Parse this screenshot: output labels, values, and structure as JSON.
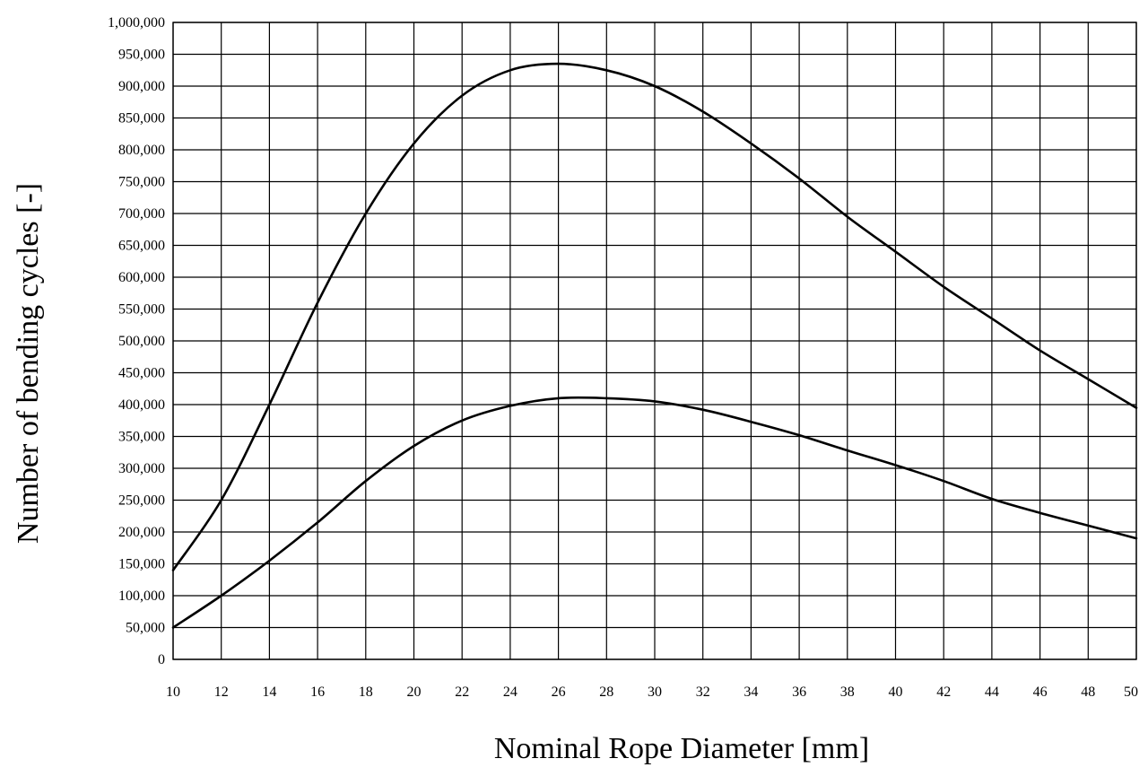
{
  "chart_data": {
    "type": "line",
    "title": "",
    "xlabel": "Nominal Rope Diameter [mm]",
    "ylabel": "Number of bending cycles [-]",
    "xlim": [
      10,
      50
    ],
    "ylim": [
      0,
      1000000
    ],
    "x_ticks": [
      10,
      12,
      14,
      16,
      18,
      20,
      22,
      24,
      26,
      28,
      30,
      32,
      34,
      36,
      38,
      40,
      42,
      44,
      46,
      48,
      50
    ],
    "y_ticks": [
      0,
      50000,
      100000,
      150000,
      200000,
      250000,
      300000,
      350000,
      400000,
      450000,
      500000,
      550000,
      600000,
      650000,
      700000,
      750000,
      800000,
      850000,
      900000,
      950000,
      1000000
    ],
    "x_tick_labels": [
      "10",
      "12",
      "14",
      "16",
      "18",
      "20",
      "22",
      "24",
      "26",
      "28",
      "30",
      "32",
      "34",
      "36",
      "38",
      "40",
      "42",
      "44",
      "46",
      "48",
      "50"
    ],
    "y_tick_labels": [
      "0",
      "50,000",
      "100,000",
      "150,000",
      "200,000",
      "250,000",
      "300,000",
      "350,000",
      "400,000",
      "450,000",
      "500,000",
      "550,000",
      "600,000",
      "650,000",
      "700,000",
      "750,000",
      "800,000",
      "850,000",
      "900,000",
      "950,000",
      "1,000,000"
    ],
    "grid": true,
    "legend": "none",
    "x": [
      10,
      12,
      14,
      16,
      18,
      20,
      22,
      24,
      26,
      28,
      30,
      32,
      34,
      36,
      38,
      40,
      42,
      44,
      46,
      48,
      50
    ],
    "series": [
      {
        "color": "#000000",
        "values": [
          140000,
          250000,
          400000,
          560000,
          700000,
          810000,
          885000,
          925000,
          935000,
          925000,
          900000,
          860000,
          810000,
          755000,
          695000,
          640000,
          585000,
          535000,
          485000,
          440000,
          395000
        ]
      },
      {
        "color": "#000000",
        "values": [
          50000,
          100000,
          155000,
          215000,
          280000,
          335000,
          375000,
          398000,
          410000,
          410000,
          405000,
          392000,
          373000,
          352000,
          328000,
          305000,
          280000,
          252000,
          230000,
          210000,
          190000
        ]
      }
    ]
  }
}
